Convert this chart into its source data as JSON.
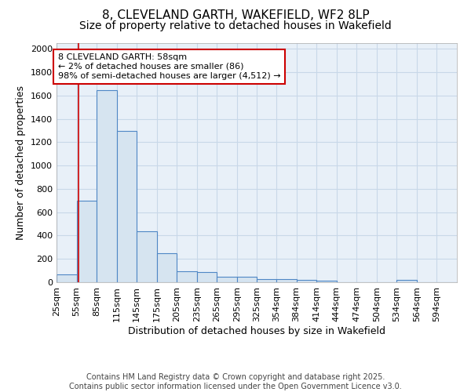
{
  "title": "8, CLEVELAND GARTH, WAKEFIELD, WF2 8LP",
  "subtitle": "Size of property relative to detached houses in Wakefield",
  "xlabel": "Distribution of detached houses by size in Wakefield",
  "ylabel": "Number of detached properties",
  "bar_values": [
    70,
    700,
    1650,
    1300,
    440,
    250,
    95,
    85,
    50,
    50,
    30,
    25,
    20,
    15,
    0,
    0,
    0,
    20,
    0,
    0
  ],
  "bar_edges": [
    25,
    55,
    85,
    115,
    145,
    175,
    205,
    235,
    265,
    295,
    325,
    354,
    384,
    414,
    444,
    474,
    504,
    534,
    564,
    594,
    624
  ],
  "bar_color_face": "#d6e4f0",
  "bar_color_edge": "#4f87c5",
  "property_line_x": 58,
  "property_line_color": "#cc0000",
  "ylim": [
    0,
    2050
  ],
  "yticks": [
    0,
    200,
    400,
    600,
    800,
    1000,
    1200,
    1400,
    1600,
    1800,
    2000
  ],
  "annotation_text": "8 CLEVELAND GARTH: 58sqm\n← 2% of detached houses are smaller (86)\n98% of semi-detached houses are larger (4,512) →",
  "annotation_box_color": "#cc0000",
  "footer_line1": "Contains HM Land Registry data © Crown copyright and database right 2025.",
  "footer_line2": "Contains public sector information licensed under the Open Government Licence v3.0.",
  "bg_color": "#ffffff",
  "plot_bg_color": "#e8f0f8",
  "grid_color": "#c8d8e8",
  "title_fontsize": 11,
  "subtitle_fontsize": 10,
  "axis_label_fontsize": 9,
  "tick_fontsize": 8,
  "footer_fontsize": 7,
  "annotation_fontsize": 8
}
